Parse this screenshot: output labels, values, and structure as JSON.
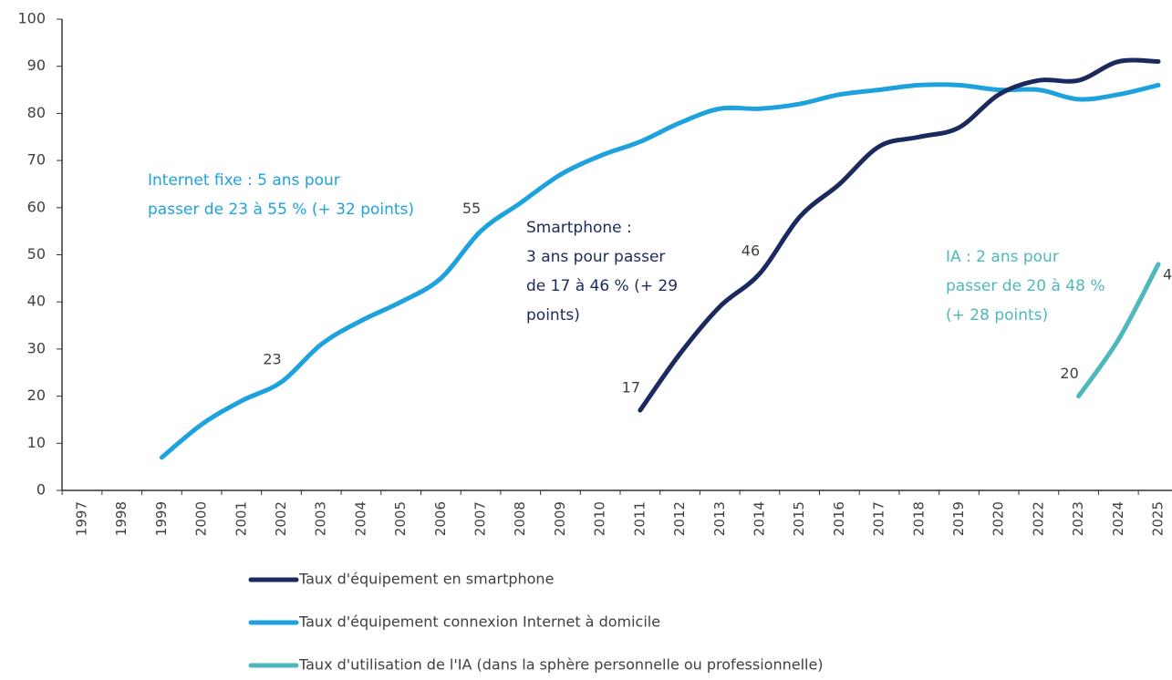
{
  "chart_data": {
    "type": "line",
    "categories": [
      "1997",
      "1998",
      "1999",
      "2000",
      "2001",
      "2002",
      "2003",
      "2004",
      "2005",
      "2006",
      "2007",
      "2008",
      "2009",
      "2010",
      "2011",
      "2012",
      "2013",
      "2014",
      "2015",
      "2016",
      "2017",
      "2018",
      "2019",
      "2020",
      "2022",
      "2023",
      "2024",
      "2025"
    ],
    "series": [
      {
        "name": "Taux d'équipement connexion Internet à domicile",
        "color": "#1ea2de",
        "values": [
          null,
          null,
          7,
          14,
          19,
          23,
          31,
          36,
          40,
          45,
          55,
          61,
          67,
          71,
          74,
          78,
          81,
          81,
          82,
          84,
          85,
          86,
          86,
          85,
          85,
          83,
          84,
          86
        ]
      },
      {
        "name": "Taux d'équipement en smartphone",
        "color": "#1b2a5e",
        "values": [
          null,
          null,
          null,
          null,
          null,
          null,
          null,
          null,
          null,
          null,
          null,
          null,
          null,
          null,
          17,
          29,
          39,
          46,
          58,
          65,
          73,
          75,
          77,
          84,
          87,
          87,
          91,
          91
        ]
      },
      {
        "name": "Taux d'utilisation de l'IA (dans la sphère personnelle ou professionnelle)",
        "color": "#4fb8ba",
        "values": [
          null,
          null,
          null,
          null,
          null,
          null,
          null,
          null,
          null,
          null,
          null,
          null,
          null,
          null,
          null,
          null,
          null,
          null,
          null,
          null,
          null,
          null,
          null,
          null,
          null,
          20,
          32,
          48
        ]
      }
    ],
    "labeled_points": [
      [
        0,
        5
      ],
      [
        0,
        10
      ],
      [
        1,
        14
      ],
      [
        1,
        17
      ],
      [
        2,
        25
      ],
      [
        2,
        27
      ]
    ],
    "annotations": [
      {
        "lines": [
          "Internet fixe : 5 ans pour",
          "passer de 23 à 55 % (+ 32 points)"
        ],
        "color": "#1ea2de"
      },
      {
        "lines": [
          "Smartphone :",
          "3 ans pour passer",
          "de 17 à 46 % (+ 29",
          "points)"
        ],
        "color": "#1b2a5e"
      },
      {
        "lines": [
          "IA : 2 ans pour",
          "passer de 20 à 48 %",
          "(+ 28 points)"
        ],
        "color": "#4fb8ba"
      }
    ],
    "legend_order": [
      1,
      0,
      2
    ],
    "ylim": [
      0,
      100
    ],
    "yticks": [
      0,
      10,
      20,
      30,
      40,
      50,
      60,
      70,
      80,
      90,
      100
    ],
    "grid": false
  }
}
